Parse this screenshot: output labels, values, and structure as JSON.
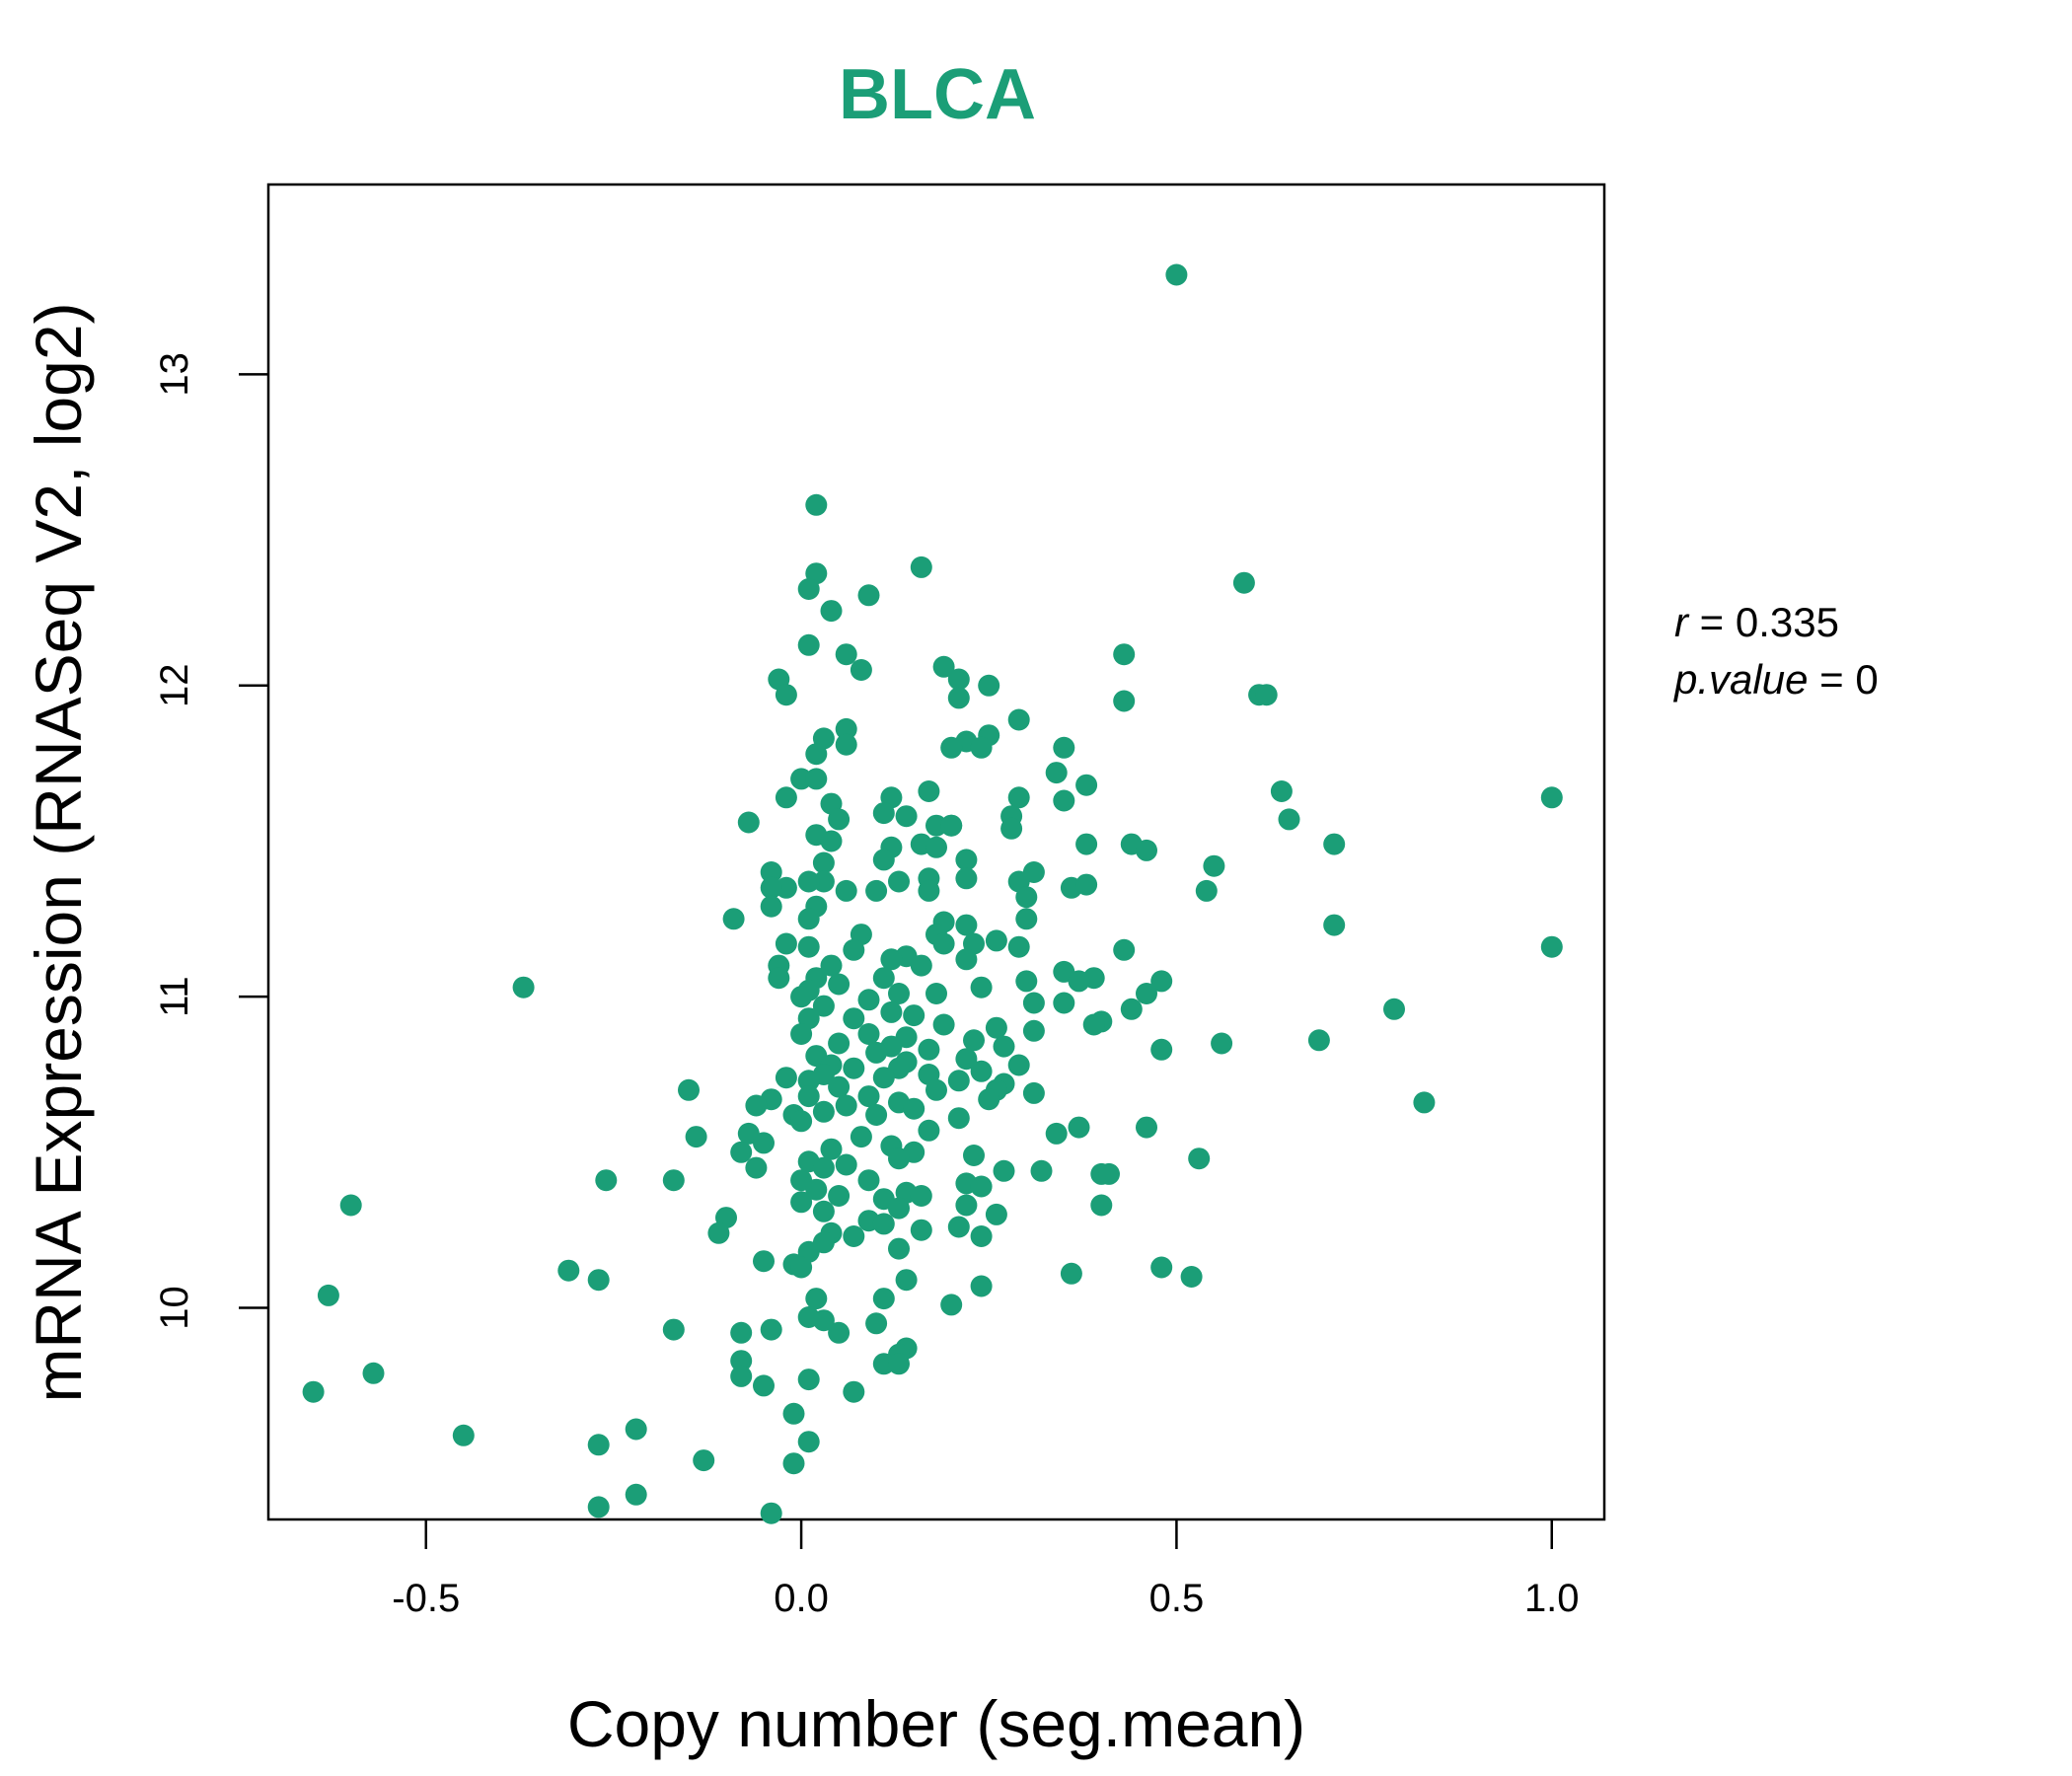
{
  "chart_data": {
    "type": "scatter",
    "title": "BLCA",
    "xlabel": "Copy number (seg.mean)",
    "ylabel": "mRNA Expression (RNASeq V2, log2)",
    "xlim": [
      -0.71,
      1.07
    ],
    "ylim": [
      9.32,
      13.61
    ],
    "x_ticks": [
      -0.5,
      0.0,
      0.5,
      1.0
    ],
    "x_tick_labels": [
      "-0.5",
      "0.0",
      "0.5",
      "1.0"
    ],
    "y_ticks": [
      10,
      11,
      12,
      13
    ],
    "y_tick_labels": [
      "10",
      "11",
      "12",
      "13"
    ],
    "grid": false,
    "legend": "none",
    "color": "#1b9e77",
    "annotation": {
      "r_label": "r",
      "r_value": "0.335",
      "p_label": "p.value",
      "p_value": "0"
    },
    "points": [
      [
        0.5,
        13.32
      ],
      [
        0.02,
        12.58
      ],
      [
        0.16,
        12.38
      ],
      [
        0.59,
        12.33
      ],
      [
        0.02,
        12.36
      ],
      [
        0.01,
        12.31
      ],
      [
        0.09,
        12.29
      ],
      [
        0.04,
        12.24
      ],
      [
        0.01,
        12.13
      ],
      [
        0.06,
        12.1
      ],
      [
        0.43,
        12.1
      ],
      [
        0.08,
        12.05
      ],
      [
        0.19,
        12.06
      ],
      [
        0.21,
        12.02
      ],
      [
        0.25,
        12.0
      ],
      [
        -0.03,
        12.02
      ],
      [
        -0.02,
        11.97
      ],
      [
        0.21,
        11.96
      ],
      [
        0.61,
        11.97
      ],
      [
        0.43,
        11.95
      ],
      [
        0.29,
        11.89
      ],
      [
        0.06,
        11.86
      ],
      [
        0.25,
        11.84
      ],
      [
        0.03,
        11.83
      ],
      [
        0.06,
        11.81
      ],
      [
        0.22,
        11.82
      ],
      [
        0.02,
        11.78
      ],
      [
        0.2,
        11.8
      ],
      [
        0.24,
        11.8
      ],
      [
        0.35,
        11.8
      ],
      [
        0.0,
        11.7
      ],
      [
        0.34,
        11.72
      ],
      [
        0.02,
        11.7
      ],
      [
        0.38,
        11.68
      ],
      [
        0.17,
        11.66
      ],
      [
        0.12,
        11.64
      ],
      [
        -0.02,
        11.64
      ],
      [
        0.04,
        11.62
      ],
      [
        0.29,
        11.64
      ],
      [
        0.64,
        11.66
      ],
      [
        1.0,
        11.64
      ],
      [
        0.35,
        11.63
      ],
      [
        0.11,
        11.59
      ],
      [
        0.05,
        11.57
      ],
      [
        0.14,
        11.58
      ],
      [
        0.18,
        11.55
      ],
      [
        0.2,
        11.55
      ],
      [
        0.28,
        11.58
      ],
      [
        -0.07,
        11.56
      ],
      [
        0.28,
        11.54
      ],
      [
        0.65,
        11.57
      ],
      [
        0.02,
        11.52
      ],
      [
        0.04,
        11.5
      ],
      [
        0.16,
        11.49
      ],
      [
        0.18,
        11.48
      ],
      [
        0.12,
        11.48
      ],
      [
        0.38,
        11.49
      ],
      [
        0.44,
        11.49
      ],
      [
        0.46,
        11.47
      ],
      [
        0.71,
        11.49
      ],
      [
        0.22,
        11.44
      ],
      [
        0.11,
        11.44
      ],
      [
        0.03,
        11.43
      ],
      [
        0.55,
        11.42
      ],
      [
        -0.04,
        11.4
      ],
      [
        0.31,
        11.4
      ],
      [
        0.22,
        11.38
      ],
      [
        0.29,
        11.37
      ],
      [
        0.17,
        11.38
      ],
      [
        0.13,
        11.37
      ],
      [
        0.03,
        11.37
      ],
      [
        0.01,
        11.37
      ],
      [
        0.06,
        11.34
      ],
      [
        -0.02,
        11.35
      ],
      [
        0.1,
        11.34
      ],
      [
        0.36,
        11.35
      ],
      [
        0.38,
        11.36
      ],
      [
        0.54,
        11.34
      ],
      [
        0.17,
        11.34
      ],
      [
        0.3,
        11.32
      ],
      [
        -0.04,
        11.35
      ],
      [
        0.02,
        11.29
      ],
      [
        -0.04,
        11.29
      ],
      [
        0.01,
        11.25
      ],
      [
        0.19,
        11.24
      ],
      [
        -0.09,
        11.25
      ],
      [
        0.3,
        11.25
      ],
      [
        0.22,
        11.23
      ],
      [
        0.71,
        11.23
      ],
      [
        0.18,
        11.2
      ],
      [
        0.08,
        11.2
      ],
      [
        0.26,
        11.18
      ],
      [
        0.23,
        11.17
      ],
      [
        -0.02,
        11.17
      ],
      [
        0.19,
        11.17
      ],
      [
        0.01,
        11.16
      ],
      [
        0.29,
        11.16
      ],
      [
        1.0,
        11.16
      ],
      [
        0.43,
        11.15
      ],
      [
        0.07,
        11.15
      ],
      [
        0.14,
        11.13
      ],
      [
        0.12,
        11.12
      ],
      [
        0.22,
        11.12
      ],
      [
        -0.03,
        11.1
      ],
      [
        0.04,
        11.1
      ],
      [
        0.16,
        11.1
      ],
      [
        0.35,
        11.08
      ],
      [
        0.11,
        11.06
      ],
      [
        0.02,
        11.06
      ],
      [
        -0.03,
        11.06
      ],
      [
        0.39,
        11.06
      ],
      [
        0.37,
        11.05
      ],
      [
        0.48,
        11.05
      ],
      [
        0.3,
        11.05
      ],
      [
        0.05,
        11.04
      ],
      [
        -0.37,
        11.03
      ],
      [
        0.24,
        11.03
      ],
      [
        0.01,
        11.02
      ],
      [
        0.46,
        11.01
      ],
      [
        0.13,
        11.01
      ],
      [
        0.18,
        11.01
      ],
      [
        0.0,
        11.0
      ],
      [
        0.09,
        10.99
      ],
      [
        0.31,
        10.98
      ],
      [
        0.35,
        10.98
      ],
      [
        0.03,
        10.97
      ],
      [
        0.44,
        10.96
      ],
      [
        0.79,
        10.96
      ],
      [
        0.12,
        10.95
      ],
      [
        0.15,
        10.94
      ],
      [
        0.07,
        10.93
      ],
      [
        0.01,
        10.93
      ],
      [
        0.4,
        10.92
      ],
      [
        0.19,
        10.91
      ],
      [
        0.39,
        10.91
      ],
      [
        0.26,
        10.9
      ],
      [
        0.31,
        10.89
      ],
      [
        0.09,
        10.88
      ],
      [
        0.0,
        10.88
      ],
      [
        0.14,
        10.87
      ],
      [
        0.23,
        10.86
      ],
      [
        0.69,
        10.86
      ],
      [
        0.56,
        10.85
      ],
      [
        0.05,
        10.85
      ],
      [
        0.12,
        10.84
      ],
      [
        0.27,
        10.84
      ],
      [
        0.48,
        10.83
      ],
      [
        0.17,
        10.83
      ],
      [
        0.1,
        10.82
      ],
      [
        0.02,
        10.81
      ],
      [
        0.22,
        10.8
      ],
      [
        0.14,
        10.79
      ],
      [
        0.04,
        10.78
      ],
      [
        0.29,
        10.78
      ],
      [
        0.13,
        10.77
      ],
      [
        0.07,
        10.77
      ],
      [
        0.24,
        10.76
      ],
      [
        0.17,
        10.75
      ],
      [
        0.03,
        10.75
      ],
      [
        -0.02,
        10.74
      ],
      [
        0.11,
        10.74
      ],
      [
        0.21,
        10.73
      ],
      [
        0.01,
        10.73
      ],
      [
        0.27,
        10.72
      ],
      [
        0.05,
        10.71
      ],
      [
        0.18,
        10.7
      ],
      [
        -0.15,
        10.7
      ],
      [
        0.26,
        10.7
      ],
      [
        0.31,
        10.69
      ],
      [
        0.01,
        10.68
      ],
      [
        0.09,
        10.68
      ],
      [
        0.25,
        10.67
      ],
      [
        -0.04,
        10.67
      ],
      [
        0.83,
        10.66
      ],
      [
        0.13,
        10.66
      ],
      [
        -0.06,
        10.65
      ],
      [
        0.06,
        10.65
      ],
      [
        0.15,
        10.64
      ],
      [
        0.03,
        10.63
      ],
      [
        -0.01,
        10.62
      ],
      [
        0.1,
        10.62
      ],
      [
        0.21,
        10.61
      ],
      [
        0.0,
        10.6
      ],
      [
        0.37,
        10.58
      ],
      [
        0.46,
        10.58
      ],
      [
        0.17,
        10.57
      ],
      [
        0.34,
        10.56
      ],
      [
        -0.07,
        10.56
      ],
      [
        0.08,
        10.55
      ],
      [
        -0.14,
        10.55
      ],
      [
        -0.05,
        10.53
      ],
      [
        0.12,
        10.52
      ],
      [
        0.04,
        10.51
      ],
      [
        -0.08,
        10.5
      ],
      [
        0.15,
        10.5
      ],
      [
        0.23,
        10.49
      ],
      [
        0.13,
        10.48
      ],
      [
        0.53,
        10.48
      ],
      [
        0.01,
        10.47
      ],
      [
        0.06,
        10.46
      ],
      [
        -0.06,
        10.45
      ],
      [
        0.03,
        10.45
      ],
      [
        0.27,
        10.44
      ],
      [
        0.32,
        10.44
      ],
      [
        0.4,
        10.43
      ],
      [
        0.41,
        10.43
      ],
      [
        0.0,
        10.41
      ],
      [
        0.09,
        10.41
      ],
      [
        0.22,
        10.4
      ],
      [
        -0.17,
        10.41
      ],
      [
        -0.26,
        10.41
      ],
      [
        0.24,
        10.39
      ],
      [
        0.02,
        10.38
      ],
      [
        0.14,
        10.37
      ],
      [
        0.16,
        10.36
      ],
      [
        0.05,
        10.36
      ],
      [
        0.11,
        10.35
      ],
      [
        0.0,
        10.34
      ],
      [
        -0.6,
        10.33
      ],
      [
        0.22,
        10.33
      ],
      [
        0.4,
        10.33
      ],
      [
        0.13,
        10.32
      ],
      [
        0.03,
        10.31
      ],
      [
        0.26,
        10.3
      ],
      [
        -0.1,
        10.29
      ],
      [
        0.09,
        10.28
      ],
      [
        0.11,
        10.27
      ],
      [
        0.16,
        10.25
      ],
      [
        0.21,
        10.26
      ],
      [
        0.04,
        10.24
      ],
      [
        -0.11,
        10.24
      ],
      [
        0.07,
        10.23
      ],
      [
        0.24,
        10.23
      ],
      [
        0.03,
        10.21
      ],
      [
        0.13,
        10.19
      ],
      [
        0.01,
        10.18
      ],
      [
        -0.05,
        10.15
      ],
      [
        -0.01,
        10.14
      ],
      [
        0.0,
        10.13
      ],
      [
        0.48,
        10.13
      ],
      [
        -0.31,
        10.12
      ],
      [
        0.36,
        10.11
      ],
      [
        0.52,
        10.1
      ],
      [
        -0.27,
        10.09
      ],
      [
        0.14,
        10.09
      ],
      [
        0.24,
        10.07
      ],
      [
        0.02,
        10.03
      ],
      [
        -0.63,
        10.04
      ],
      [
        0.11,
        10.03
      ],
      [
        0.2,
        10.01
      ],
      [
        0.01,
        9.97
      ],
      [
        0.03,
        9.96
      ],
      [
        0.1,
        9.95
      ],
      [
        -0.17,
        9.93
      ],
      [
        -0.04,
        9.93
      ],
      [
        -0.08,
        9.92
      ],
      [
        0.05,
        9.92
      ],
      [
        0.14,
        9.87
      ],
      [
        0.13,
        9.85
      ],
      [
        -0.08,
        9.83
      ],
      [
        0.11,
        9.82
      ],
      [
        0.13,
        9.82
      ],
      [
        -0.57,
        9.79
      ],
      [
        -0.08,
        9.78
      ],
      [
        0.01,
        9.77
      ],
      [
        -0.05,
        9.75
      ],
      [
        0.07,
        9.73
      ],
      [
        -0.65,
        9.73
      ],
      [
        -0.01,
        9.66
      ],
      [
        -0.22,
        9.61
      ],
      [
        -0.45,
        9.59
      ],
      [
        0.01,
        9.57
      ],
      [
        -0.27,
        9.56
      ],
      [
        -0.13,
        9.51
      ],
      [
        -0.01,
        9.5
      ],
      [
        -0.22,
        9.4
      ],
      [
        -0.27,
        9.36
      ],
      [
        -0.04,
        9.34
      ],
      [
        0.62,
        11.97
      ],
      [
        0.2,
        11.55
      ]
    ]
  }
}
